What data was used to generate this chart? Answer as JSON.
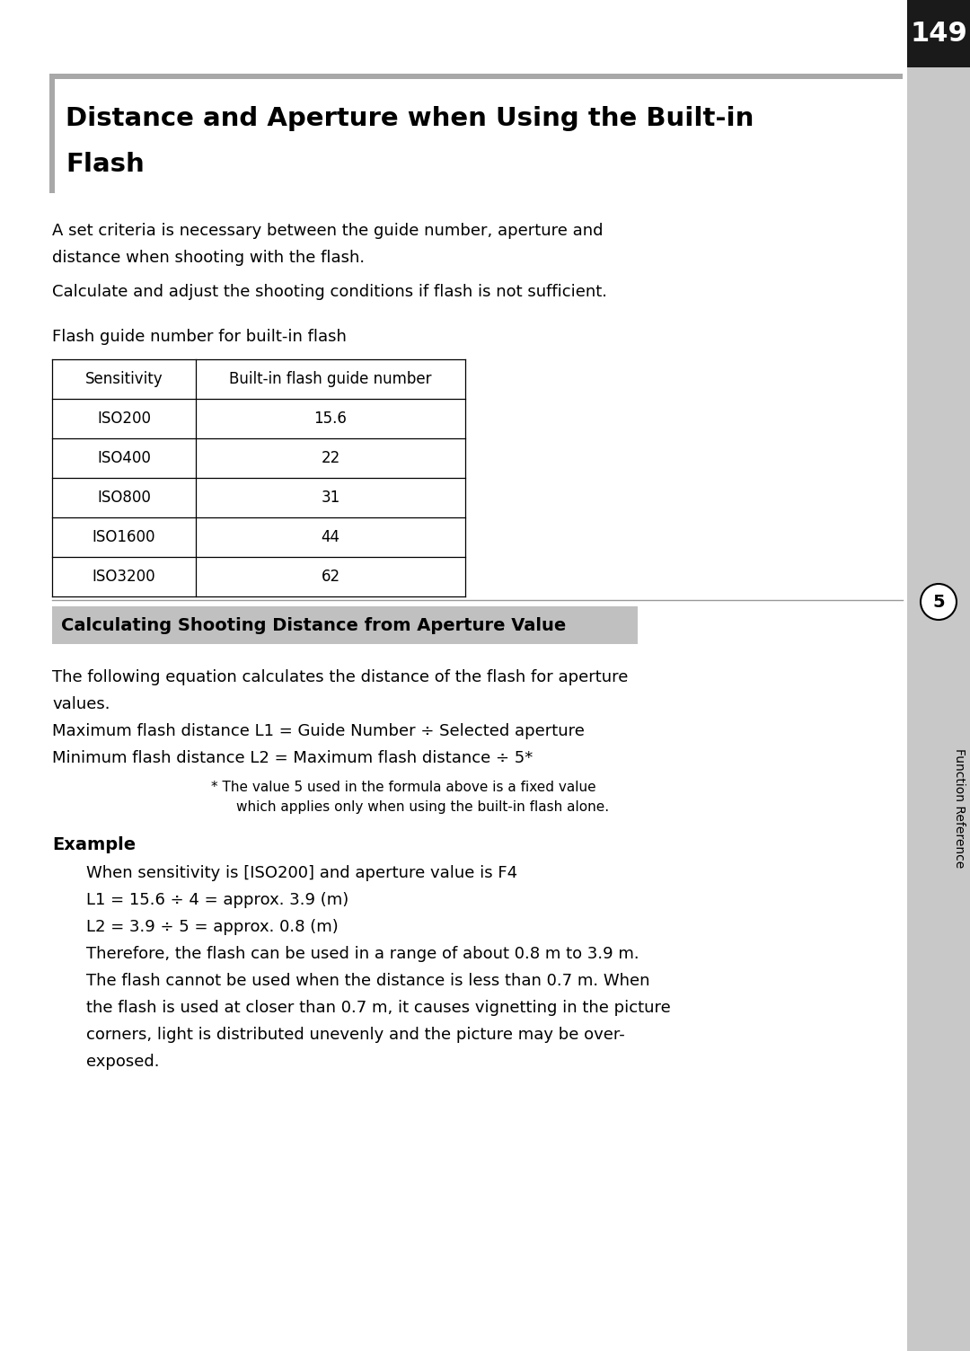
{
  "page_number": "149",
  "bg_color": "#ffffff",
  "sidebar_color": "#c8c8c8",
  "title_bar_color": "#a8a8a8",
  "page_num_bg": "#1a1a1a",
  "page_num_color": "#ffffff",
  "intro_text_line1": "A set criteria is necessary between the guide number, aperture and",
  "intro_text_line2": "distance when shooting with the flash.",
  "intro_text_line3": "Calculate and adjust the shooting conditions if flash is not sufficient.",
  "table_title": "Flash guide number for built-in flash",
  "table_headers": [
    "Sensitivity",
    "Built-in flash guide number"
  ],
  "table_rows": [
    [
      "ISO200",
      "15.6"
    ],
    [
      "ISO400",
      "22"
    ],
    [
      "ISO800",
      "31"
    ],
    [
      "ISO1600",
      "44"
    ],
    [
      "ISO3200",
      "62"
    ]
  ],
  "section_title": "Calculating Shooting Distance from Aperture Value",
  "section_bg": "#c0c0c0",
  "body_text": [
    "The following equation calculates the distance of the flash for aperture",
    "values.",
    "Maximum flash distance L1 = Guide Number ÷ Selected aperture",
    "Minimum flash distance L2 = Maximum flash distance ÷ 5*"
  ],
  "footnote_line1": "* The value 5 used in the formula above is a fixed value",
  "footnote_line2": "which applies only when using the built-in flash alone.",
  "example_label": "Example",
  "example_lines": [
    "When sensitivity is [ISO200] and aperture value is F4",
    "L1 = 15.6 ÷ 4 = approx. 3.9 (m)",
    "L2 = 3.9 ÷ 5 = approx. 0.8 (m)",
    "Therefore, the flash can be used in a range of about 0.8 m to 3.9 m.",
    "The flash cannot be used when the distance is less than 0.7 m. When",
    "the flash is used at closer than 0.7 m, it causes vignetting in the picture",
    "corners, light is distributed unevenly and the picture may be over-",
    "exposed."
  ],
  "sidebar_text": "Function Reference",
  "sidebar_number": "5"
}
